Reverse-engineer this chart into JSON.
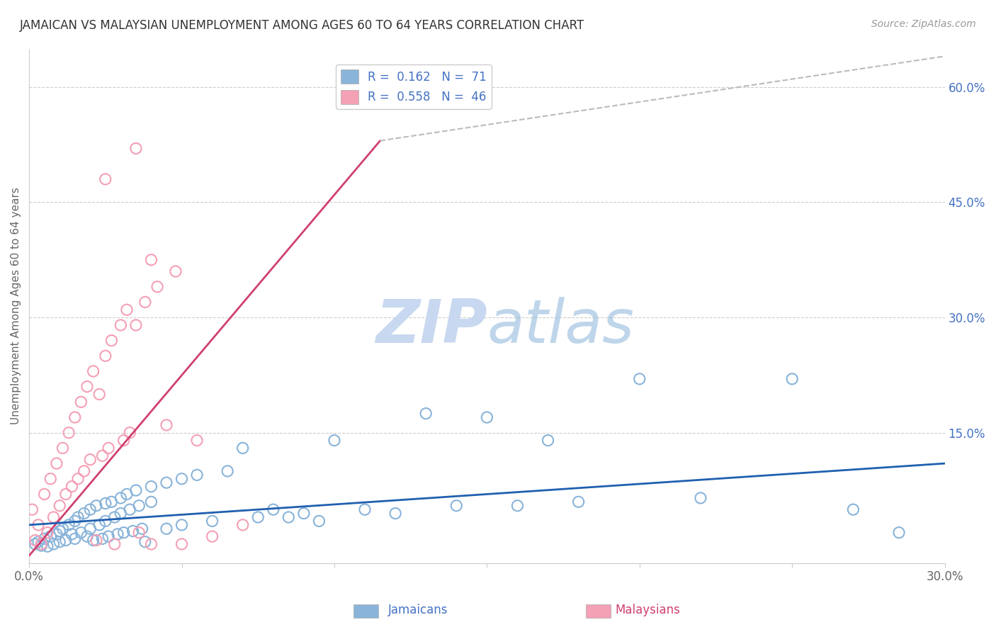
{
  "title": "JAMAICAN VS MALAYSIAN UNEMPLOYMENT AMONG AGES 60 TO 64 YEARS CORRELATION CHART",
  "source": "Source: ZipAtlas.com",
  "ylabel": "Unemployment Among Ages 60 to 64 years",
  "xlabel_jamaicans": "Jamaicans",
  "xlabel_malaysians": "Malaysians",
  "xlim": [
    0.0,
    0.3
  ],
  "ylim": [
    -0.02,
    0.65
  ],
  "R_jamaicans": 0.162,
  "N_jamaicans": 71,
  "R_malaysians": 0.558,
  "N_malaysians": 46,
  "jamaican_color": "#8ab4d9",
  "malaysian_color": "#f4a0b5",
  "trendline_jamaican_color": "#2060b0",
  "trendline_malaysian_color": "#d04070",
  "watermark_color": "#c8d8f0",
  "watermark_text": "ZIPatlas",
  "jamaican_scatter": [
    [
      0.002,
      0.005
    ],
    [
      0.003,
      0.008
    ],
    [
      0.004,
      0.003
    ],
    [
      0.005,
      0.012
    ],
    [
      0.006,
      0.002
    ],
    [
      0.007,
      0.015
    ],
    [
      0.008,
      0.005
    ],
    [
      0.009,
      0.018
    ],
    [
      0.01,
      0.022
    ],
    [
      0.01,
      0.008
    ],
    [
      0.011,
      0.025
    ],
    [
      0.012,
      0.01
    ],
    [
      0.013,
      0.03
    ],
    [
      0.014,
      0.018
    ],
    [
      0.015,
      0.035
    ],
    [
      0.015,
      0.012
    ],
    [
      0.016,
      0.04
    ],
    [
      0.017,
      0.02
    ],
    [
      0.018,
      0.045
    ],
    [
      0.019,
      0.015
    ],
    [
      0.02,
      0.05
    ],
    [
      0.02,
      0.025
    ],
    [
      0.021,
      0.01
    ],
    [
      0.022,
      0.055
    ],
    [
      0.023,
      0.03
    ],
    [
      0.024,
      0.012
    ],
    [
      0.025,
      0.058
    ],
    [
      0.025,
      0.035
    ],
    [
      0.026,
      0.015
    ],
    [
      0.027,
      0.06
    ],
    [
      0.028,
      0.04
    ],
    [
      0.029,
      0.018
    ],
    [
      0.03,
      0.065
    ],
    [
      0.03,
      0.045
    ],
    [
      0.031,
      0.02
    ],
    [
      0.032,
      0.07
    ],
    [
      0.033,
      0.05
    ],
    [
      0.034,
      0.022
    ],
    [
      0.035,
      0.075
    ],
    [
      0.036,
      0.055
    ],
    [
      0.037,
      0.025
    ],
    [
      0.038,
      0.008
    ],
    [
      0.04,
      0.08
    ],
    [
      0.04,
      0.06
    ],
    [
      0.045,
      0.085
    ],
    [
      0.045,
      0.025
    ],
    [
      0.05,
      0.09
    ],
    [
      0.05,
      0.03
    ],
    [
      0.055,
      0.095
    ],
    [
      0.06,
      0.035
    ],
    [
      0.065,
      0.1
    ],
    [
      0.07,
      0.13
    ],
    [
      0.075,
      0.04
    ],
    [
      0.08,
      0.05
    ],
    [
      0.085,
      0.04
    ],
    [
      0.09,
      0.045
    ],
    [
      0.095,
      0.035
    ],
    [
      0.1,
      0.14
    ],
    [
      0.11,
      0.05
    ],
    [
      0.12,
      0.045
    ],
    [
      0.13,
      0.175
    ],
    [
      0.14,
      0.055
    ],
    [
      0.15,
      0.17
    ],
    [
      0.16,
      0.055
    ],
    [
      0.17,
      0.14
    ],
    [
      0.18,
      0.06
    ],
    [
      0.2,
      0.22
    ],
    [
      0.22,
      0.065
    ],
    [
      0.25,
      0.22
    ],
    [
      0.27,
      0.05
    ],
    [
      0.285,
      0.02
    ]
  ],
  "malaysian_scatter": [
    [
      0.001,
      0.05
    ],
    [
      0.002,
      0.01
    ],
    [
      0.003,
      0.03
    ],
    [
      0.004,
      0.005
    ],
    [
      0.005,
      0.07
    ],
    [
      0.006,
      0.02
    ],
    [
      0.007,
      0.09
    ],
    [
      0.008,
      0.04
    ],
    [
      0.009,
      0.11
    ],
    [
      0.01,
      0.055
    ],
    [
      0.011,
      0.13
    ],
    [
      0.012,
      0.07
    ],
    [
      0.013,
      0.15
    ],
    [
      0.014,
      0.08
    ],
    [
      0.015,
      0.17
    ],
    [
      0.016,
      0.09
    ],
    [
      0.017,
      0.19
    ],
    [
      0.018,
      0.1
    ],
    [
      0.019,
      0.21
    ],
    [
      0.02,
      0.115
    ],
    [
      0.021,
      0.23
    ],
    [
      0.022,
      0.01
    ],
    [
      0.023,
      0.2
    ],
    [
      0.024,
      0.12
    ],
    [
      0.025,
      0.25
    ],
    [
      0.026,
      0.13
    ],
    [
      0.027,
      0.27
    ],
    [
      0.028,
      0.005
    ],
    [
      0.03,
      0.29
    ],
    [
      0.031,
      0.14
    ],
    [
      0.032,
      0.31
    ],
    [
      0.033,
      0.15
    ],
    [
      0.035,
      0.29
    ],
    [
      0.036,
      0.02
    ],
    [
      0.038,
      0.32
    ],
    [
      0.04,
      0.005
    ],
    [
      0.042,
      0.34
    ],
    [
      0.045,
      0.16
    ],
    [
      0.048,
      0.36
    ],
    [
      0.05,
      0.005
    ],
    [
      0.055,
      0.14
    ],
    [
      0.06,
      0.015
    ],
    [
      0.07,
      0.03
    ],
    [
      0.035,
      0.52
    ],
    [
      0.025,
      0.48
    ],
    [
      0.04,
      0.375
    ]
  ],
  "trendline_jamaican": [
    [
      0.0,
      0.03
    ],
    [
      0.3,
      0.11
    ]
  ],
  "trendline_malaysian": [
    [
      0.0,
      -0.01
    ],
    [
      0.115,
      0.53
    ]
  ],
  "trendline_dashed": [
    [
      0.115,
      0.53
    ],
    [
      0.3,
      0.64
    ]
  ]
}
